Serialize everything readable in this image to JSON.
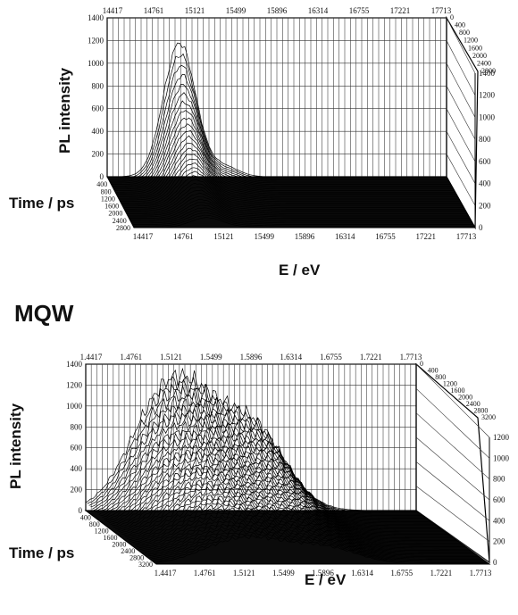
{
  "chart_data": [
    {
      "type": "3d-waterfall",
      "title": "",
      "xlabel": "E / eV",
      "ylabel": "PL intensity",
      "zlabel": "Time / ps",
      "x_tick_labels": [
        "14417",
        "14761",
        "15121",
        "15499",
        "15896",
        "16314",
        "16755",
        "17221",
        "17713"
      ],
      "y_tick_labels": [
        "0",
        "200",
        "400",
        "600",
        "800",
        "1000",
        "1200",
        "1400"
      ],
      "y_right_tick_labels": [
        "0",
        "200",
        "400",
        "600",
        "800",
        "1000",
        "1200",
        "1400"
      ],
      "time_ticks_left": [
        "400",
        "800",
        "1200",
        "1600",
        "2000",
        "2400",
        "2800"
      ],
      "time_ticks_right": [
        "0",
        "400",
        "800",
        "1200",
        "1600",
        "2000",
        "2400",
        "2800"
      ],
      "ylim": [
        0,
        1400
      ],
      "peak": {
        "energy_eV": 1.512,
        "max_intensity": 1180,
        "decay": "fast"
      },
      "grid": true
    },
    {
      "type": "3d-waterfall",
      "title": "MQW",
      "xlabel": "E / eV",
      "ylabel": "PL intensity",
      "zlabel": "Time / ps",
      "x_tick_labels": [
        "1.4417",
        "1.4761",
        "1.5121",
        "1.5499",
        "1.5896",
        "1.6314",
        "1.6755",
        "1.7221",
        "1.7713"
      ],
      "y_tick_labels": [
        "0",
        "200",
        "400",
        "600",
        "800",
        "1000",
        "1200",
        "1400"
      ],
      "y_right_tick_labels": [
        "0",
        "200",
        "400",
        "600",
        "800",
        "1000",
        "1200"
      ],
      "time_ticks_left": [
        "400",
        "800",
        "1200",
        "1600",
        "2000",
        "2400",
        "2800",
        "3200"
      ],
      "time_ticks_right": [
        "0",
        "400",
        "800",
        "1200",
        "1600",
        "2000",
        "2400",
        "2800",
        "3200"
      ],
      "ylim": [
        0,
        1400
      ],
      "peaks": [
        {
          "energy_eV": 1.51,
          "max_intensity": 950
        },
        {
          "energy_eV": 1.55,
          "max_intensity": 1000
        },
        {
          "energy_eV": 1.61,
          "max_intensity": 950
        }
      ],
      "decay": "slow",
      "grid": true
    }
  ]
}
